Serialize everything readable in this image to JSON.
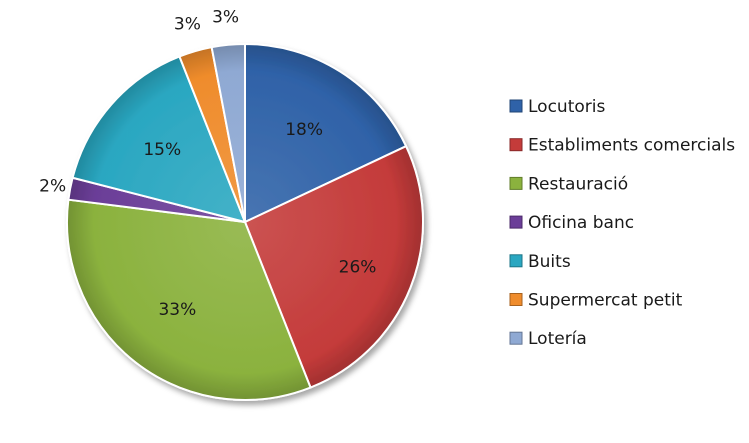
{
  "chart_data": {
    "type": "pie",
    "title": "",
    "labels": [
      "Locutoris",
      "Establiments comercials",
      "Restauració",
      "Oficina banc",
      "Buits",
      "Supermercat petit",
      "Lotería"
    ],
    "values": [
      18,
      26,
      33,
      2,
      15,
      3,
      3
    ],
    "value_labels": [
      "18%",
      "26%",
      "33%",
      "2%",
      "15%",
      "3%",
      "3%"
    ],
    "colors": [
      "#2f62a8",
      "#c43b3a",
      "#8bb23e",
      "#6b3e98",
      "#2aa7c1",
      "#ef8c2c",
      "#8fa9d3"
    ],
    "legend_position": "right"
  }
}
